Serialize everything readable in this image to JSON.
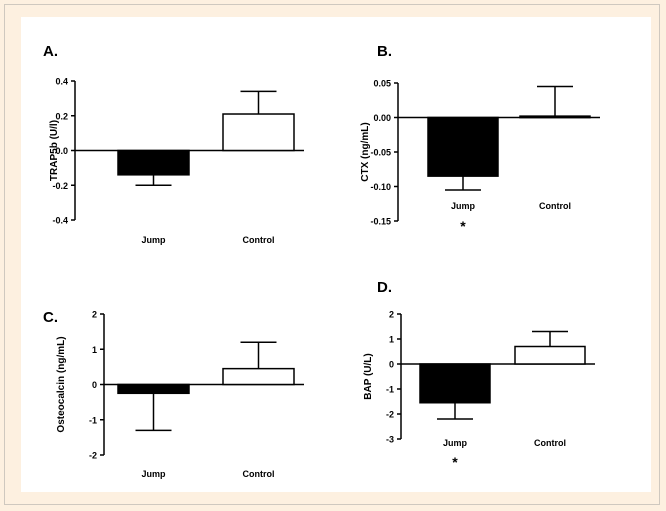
{
  "chart_data": [
    {
      "panel_label": "A.",
      "type": "bar",
      "categories": [
        "Jump",
        "Control"
      ],
      "values": [
        -0.14,
        0.21
      ],
      "errors": [
        0.06,
        0.13
      ],
      "ylabel": "TRAP5b (U/l)",
      "ylim": [
        -0.4,
        0.4
      ],
      "yticks": [
        "0.4",
        "0.2",
        "0.0",
        "-0.2",
        "-0.4"
      ],
      "significance": [
        "",
        ""
      ],
      "bar_colors": [
        "#000000",
        "#ffffff"
      ]
    },
    {
      "panel_label": "B.",
      "type": "bar",
      "categories": [
        "Jump",
        "Control"
      ],
      "values": [
        -0.085,
        0.002
      ],
      "errors": [
        0.02,
        0.043
      ],
      "ylabel": "CTX (ng/mL)",
      "ylim": [
        -0.15,
        0.05
      ],
      "yticks": [
        "0.05",
        "0.00",
        "-0.05",
        "-0.10",
        "-0.15"
      ],
      "significance": [
        "*",
        ""
      ],
      "bar_colors": [
        "#000000",
        "#ffffff"
      ]
    },
    {
      "panel_label": "C.",
      "type": "bar",
      "categories": [
        "Jump",
        "Control"
      ],
      "values": [
        -0.25,
        0.45
      ],
      "errors": [
        1.05,
        0.75
      ],
      "ylabel": "Osteocalcin (ng/mL)",
      "ylim": [
        -2,
        2
      ],
      "yticks": [
        "2",
        "1",
        "0",
        "-1",
        "-2"
      ],
      "significance": [
        "",
        ""
      ],
      "bar_colors": [
        "#000000",
        "#ffffff"
      ]
    },
    {
      "panel_label": "D.",
      "type": "bar",
      "categories": [
        "Jump",
        "Control"
      ],
      "values": [
        -1.55,
        0.7
      ],
      "errors": [
        0.65,
        0.6
      ],
      "ylabel": "BAP (U/L)",
      "ylim": [
        -3,
        2
      ],
      "yticks": [
        "2",
        "1",
        "0",
        "-1",
        "-2",
        "-3"
      ],
      "significance": [
        "*",
        ""
      ],
      "bar_colors": [
        "#000000",
        "#ffffff"
      ]
    }
  ]
}
